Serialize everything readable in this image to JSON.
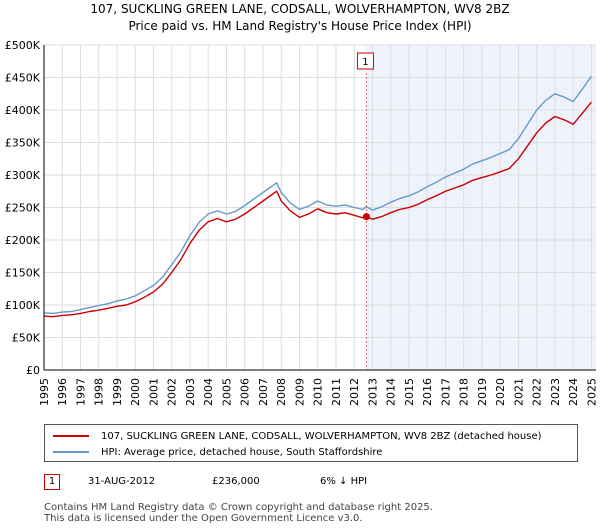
{
  "header": {
    "title_line1": "107, SUCKLING GREEN LANE, CODSALL, WOLVERHAMPTON, WV8 2BZ",
    "title_line2": "Price paid vs. HM Land Registry's House Price Index (HPI)"
  },
  "colors": {
    "property_line": "#cc0000",
    "hpi_line": "#6699cc",
    "shade": "#eef2fb",
    "grid": "#dddddd",
    "marker_line": "#e06666"
  },
  "chart_data": {
    "type": "line",
    "ylim": [
      0,
      500000
    ],
    "xlim": [
      1995.0,
      2025.25
    ],
    "yticks": [
      0,
      50000,
      100000,
      150000,
      200000,
      250000,
      300000,
      350000,
      400000,
      450000,
      500000
    ],
    "ytick_labels": [
      "£0",
      "£50K",
      "£100K",
      "£150K",
      "£200K",
      "£250K",
      "£300K",
      "£350K",
      "£400K",
      "£450K",
      "£500K"
    ],
    "xtick_labels": [
      "1995",
      "1996",
      "1997",
      "1998",
      "1999",
      "2000",
      "2001",
      "2002",
      "2003",
      "2004",
      "2005",
      "2006",
      "2007",
      "2008",
      "2009",
      "2010",
      "2011",
      "2012",
      "2013",
      "2014",
      "2015",
      "2016",
      "2017",
      "2018",
      "2019",
      "2020",
      "2021",
      "2022",
      "2023",
      "2024",
      "2025"
    ],
    "shaded_from": 2012.67,
    "series": [
      {
        "name": "107, SUCKLING GREEN LANE, CODSALL, WOLVERHAMPTON, WV8 2BZ (detached house)",
        "x": [
          1995.0,
          1995.5,
          1996.0,
          1996.5,
          1997.0,
          1997.5,
          1998.0,
          1998.5,
          1999.0,
          1999.5,
          2000.0,
          2000.5,
          2001.0,
          2001.5,
          2002.0,
          2002.5,
          2003.0,
          2003.5,
          2004.0,
          2004.5,
          2005.0,
          2005.5,
          2006.0,
          2006.5,
          2007.0,
          2007.5,
          2007.75,
          2008.0,
          2008.5,
          2009.0,
          2009.5,
          2010.0,
          2010.5,
          2011.0,
          2011.5,
          2012.0,
          2012.5,
          2012.67,
          2013.0,
          2013.5,
          2014.0,
          2014.5,
          2015.0,
          2015.5,
          2016.0,
          2016.5,
          2017.0,
          2017.5,
          2018.0,
          2018.5,
          2019.0,
          2019.5,
          2020.0,
          2020.5,
          2021.0,
          2021.5,
          2022.0,
          2022.5,
          2023.0,
          2023.5,
          2024.0,
          2024.5,
          2025.0
        ],
        "values": [
          83000,
          82000,
          84000,
          85000,
          87000,
          90000,
          92000,
          95000,
          98000,
          100000,
          105000,
          112000,
          120000,
          132000,
          150000,
          170000,
          195000,
          215000,
          228000,
          233000,
          228000,
          232000,
          240000,
          250000,
          260000,
          270000,
          275000,
          260000,
          245000,
          235000,
          240000,
          248000,
          242000,
          240000,
          242000,
          238000,
          234000,
          236000,
          232000,
          236000,
          242000,
          247000,
          250000,
          255000,
          262000,
          268000,
          275000,
          280000,
          285000,
          292000,
          296000,
          300000,
          305000,
          310000,
          325000,
          345000,
          365000,
          380000,
          390000,
          385000,
          378000,
          395000,
          412000
        ]
      },
      {
        "name": "HPI: Average price, detached house, South Staffordshire",
        "x": [
          1995.0,
          1995.5,
          1996.0,
          1996.5,
          1997.0,
          1997.5,
          1998.0,
          1998.5,
          1999.0,
          1999.5,
          2000.0,
          2000.5,
          2001.0,
          2001.5,
          2002.0,
          2002.5,
          2003.0,
          2003.5,
          2004.0,
          2004.5,
          2005.0,
          2005.5,
          2006.0,
          2006.5,
          2007.0,
          2007.5,
          2007.75,
          2008.0,
          2008.5,
          2009.0,
          2009.5,
          2010.0,
          2010.5,
          2011.0,
          2011.5,
          2012.0,
          2012.5,
          2012.67,
          2013.0,
          2013.5,
          2014.0,
          2014.5,
          2015.0,
          2015.5,
          2016.0,
          2016.5,
          2017.0,
          2017.5,
          2018.0,
          2018.5,
          2019.0,
          2019.5,
          2020.0,
          2020.5,
          2021.0,
          2021.5,
          2022.0,
          2022.5,
          2023.0,
          2023.5,
          2024.0,
          2024.5,
          2025.0
        ],
        "values": [
          88000,
          87000,
          89000,
          90000,
          93000,
          96000,
          99000,
          102000,
          106000,
          109000,
          114000,
          122000,
          130000,
          143000,
          162000,
          182000,
          207000,
          227000,
          240000,
          245000,
          240000,
          244000,
          253000,
          263000,
          273000,
          283000,
          288000,
          273000,
          257000,
          247000,
          252000,
          260000,
          254000,
          252000,
          254000,
          250000,
          247000,
          251000,
          246000,
          251000,
          258000,
          264000,
          268000,
          274000,
          282000,
          289000,
          297000,
          303000,
          309000,
          317000,
          322000,
          327000,
          333000,
          339000,
          356000,
          378000,
          400000,
          415000,
          425000,
          420000,
          413000,
          432000,
          452000
        ]
      }
    ],
    "annotations": [
      {
        "label": "1",
        "x": 2012.67,
        "y": 236000
      }
    ]
  },
  "legend": {
    "property_label": "107, SUCKLING GREEN LANE, CODSALL, WOLVERHAMPTON, WV8 2BZ (detached house)",
    "hpi_label": "HPI: Average price, detached house, South Staffordshire"
  },
  "transaction": {
    "number": "1",
    "date": "31-AUG-2012",
    "price": "£236,000",
    "diff": "6% ↓ HPI"
  },
  "footer": {
    "line1": "Contains HM Land Registry data © Crown copyright and database right 2025.",
    "line2": "This data is licensed under the Open Government Licence v3.0."
  }
}
